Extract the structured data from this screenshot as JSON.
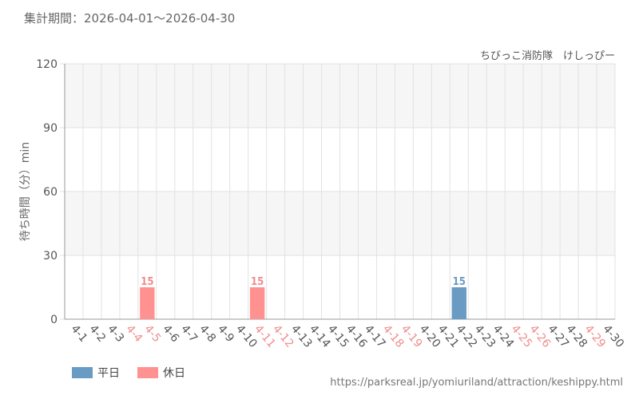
{
  "header": {
    "period_label": "集計期間：2026-04-01～2026-04-30",
    "attraction": "ちびっこ消防隊　けしっぴー"
  },
  "footer": {
    "source_url": "https://parksreal.jp/yomiuriland/attraction/keshippy.html"
  },
  "colors": {
    "weekday": "#6a9bc3",
    "holiday": "#ff9191",
    "holiday_label": "#f08c8c",
    "band": "#f6f6f6",
    "grid": "#e2e2e2"
  },
  "chart_data": {
    "type": "bar",
    "ylabel": "待ち時間（分）min",
    "ylim": [
      0,
      120
    ],
    "yticks": [
      0,
      30,
      60,
      90,
      120
    ],
    "grid": true,
    "legend_position": "bottom-left",
    "categories": [
      "4-1",
      "4-2",
      "4-3",
      "4-4",
      "4-5",
      "4-6",
      "4-7",
      "4-8",
      "4-9",
      "4-10",
      "4-11",
      "4-12",
      "4-13",
      "4-14",
      "4-15",
      "4-16",
      "4-17",
      "4-18",
      "4-19",
      "4-20",
      "4-21",
      "4-22",
      "4-23",
      "4-24",
      "4-25",
      "4-26",
      "4-27",
      "4-28",
      "4-29",
      "4-30"
    ],
    "holiday_categories": [
      "4-4",
      "4-5",
      "4-11",
      "4-12",
      "4-18",
      "4-19",
      "4-25",
      "4-26",
      "4-29"
    ],
    "series": [
      {
        "name": "平日",
        "values": [
          null,
          null,
          null,
          null,
          null,
          null,
          null,
          null,
          null,
          null,
          null,
          null,
          null,
          null,
          null,
          null,
          null,
          null,
          null,
          null,
          null,
          15,
          null,
          null,
          null,
          null,
          null,
          null,
          null,
          null
        ]
      },
      {
        "name": "休日",
        "values": [
          null,
          null,
          null,
          null,
          15,
          null,
          null,
          null,
          null,
          null,
          15,
          null,
          null,
          null,
          null,
          null,
          null,
          null,
          null,
          null,
          null,
          null,
          null,
          null,
          null,
          null,
          null,
          null,
          null,
          null
        ]
      }
    ]
  }
}
